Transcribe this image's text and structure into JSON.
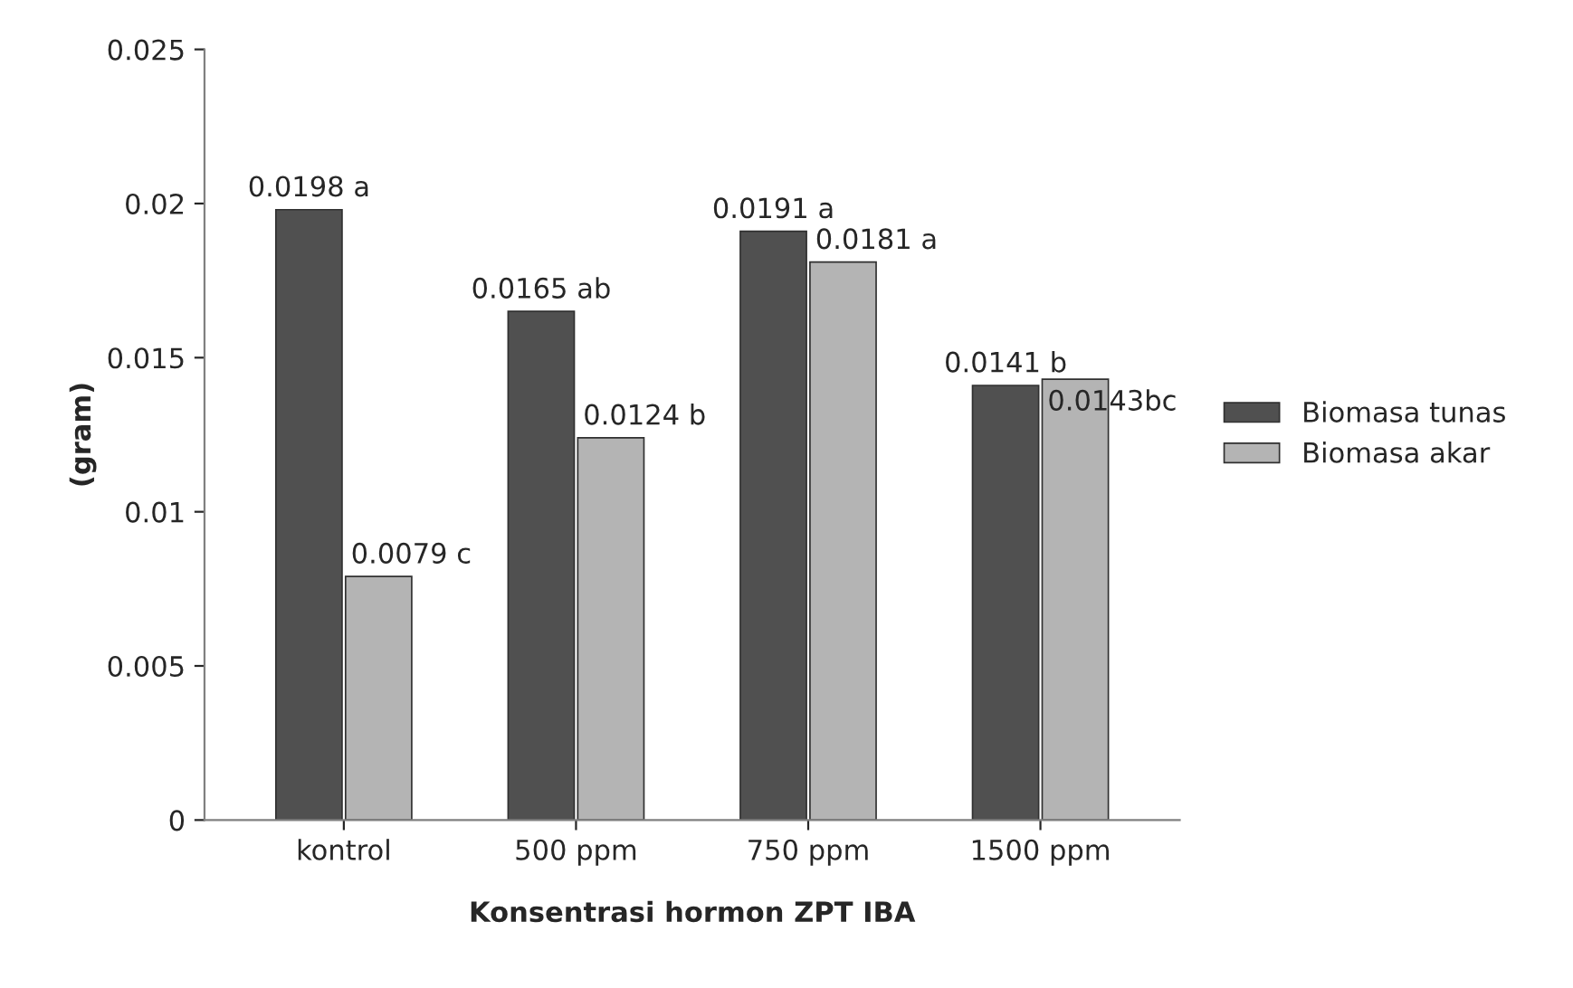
{
  "chart_data": {
    "type": "bar",
    "xlabel": "Konsentrasi hormon ZPT IBA",
    "ylabel": "(gram)",
    "categories": [
      "kontrol",
      "500 ppm",
      "750 ppm",
      "1500 ppm"
    ],
    "series": [
      {
        "name": "Biomasa tunas",
        "color": "#505050",
        "values": [
          0.0198,
          0.0165,
          0.0191,
          0.0141
        ],
        "value_labels": [
          "0.0198 a",
          "0.0165 ab",
          "0.0191 a",
          "0.0141 b"
        ]
      },
      {
        "name": "Biomasa akar",
        "color": "#b4b4b4",
        "values": [
          0.0079,
          0.0124,
          0.0181,
          0.0143
        ],
        "value_labels": [
          "0.0079 c",
          "0.0124 b",
          "0.0181 a",
          "0.0143bc"
        ]
      }
    ],
    "ylim": [
      0,
      0.025
    ],
    "yticks": [
      0,
      0.005,
      0.01,
      0.015,
      0.02,
      0.025
    ],
    "grid": false,
    "legend": "right"
  }
}
